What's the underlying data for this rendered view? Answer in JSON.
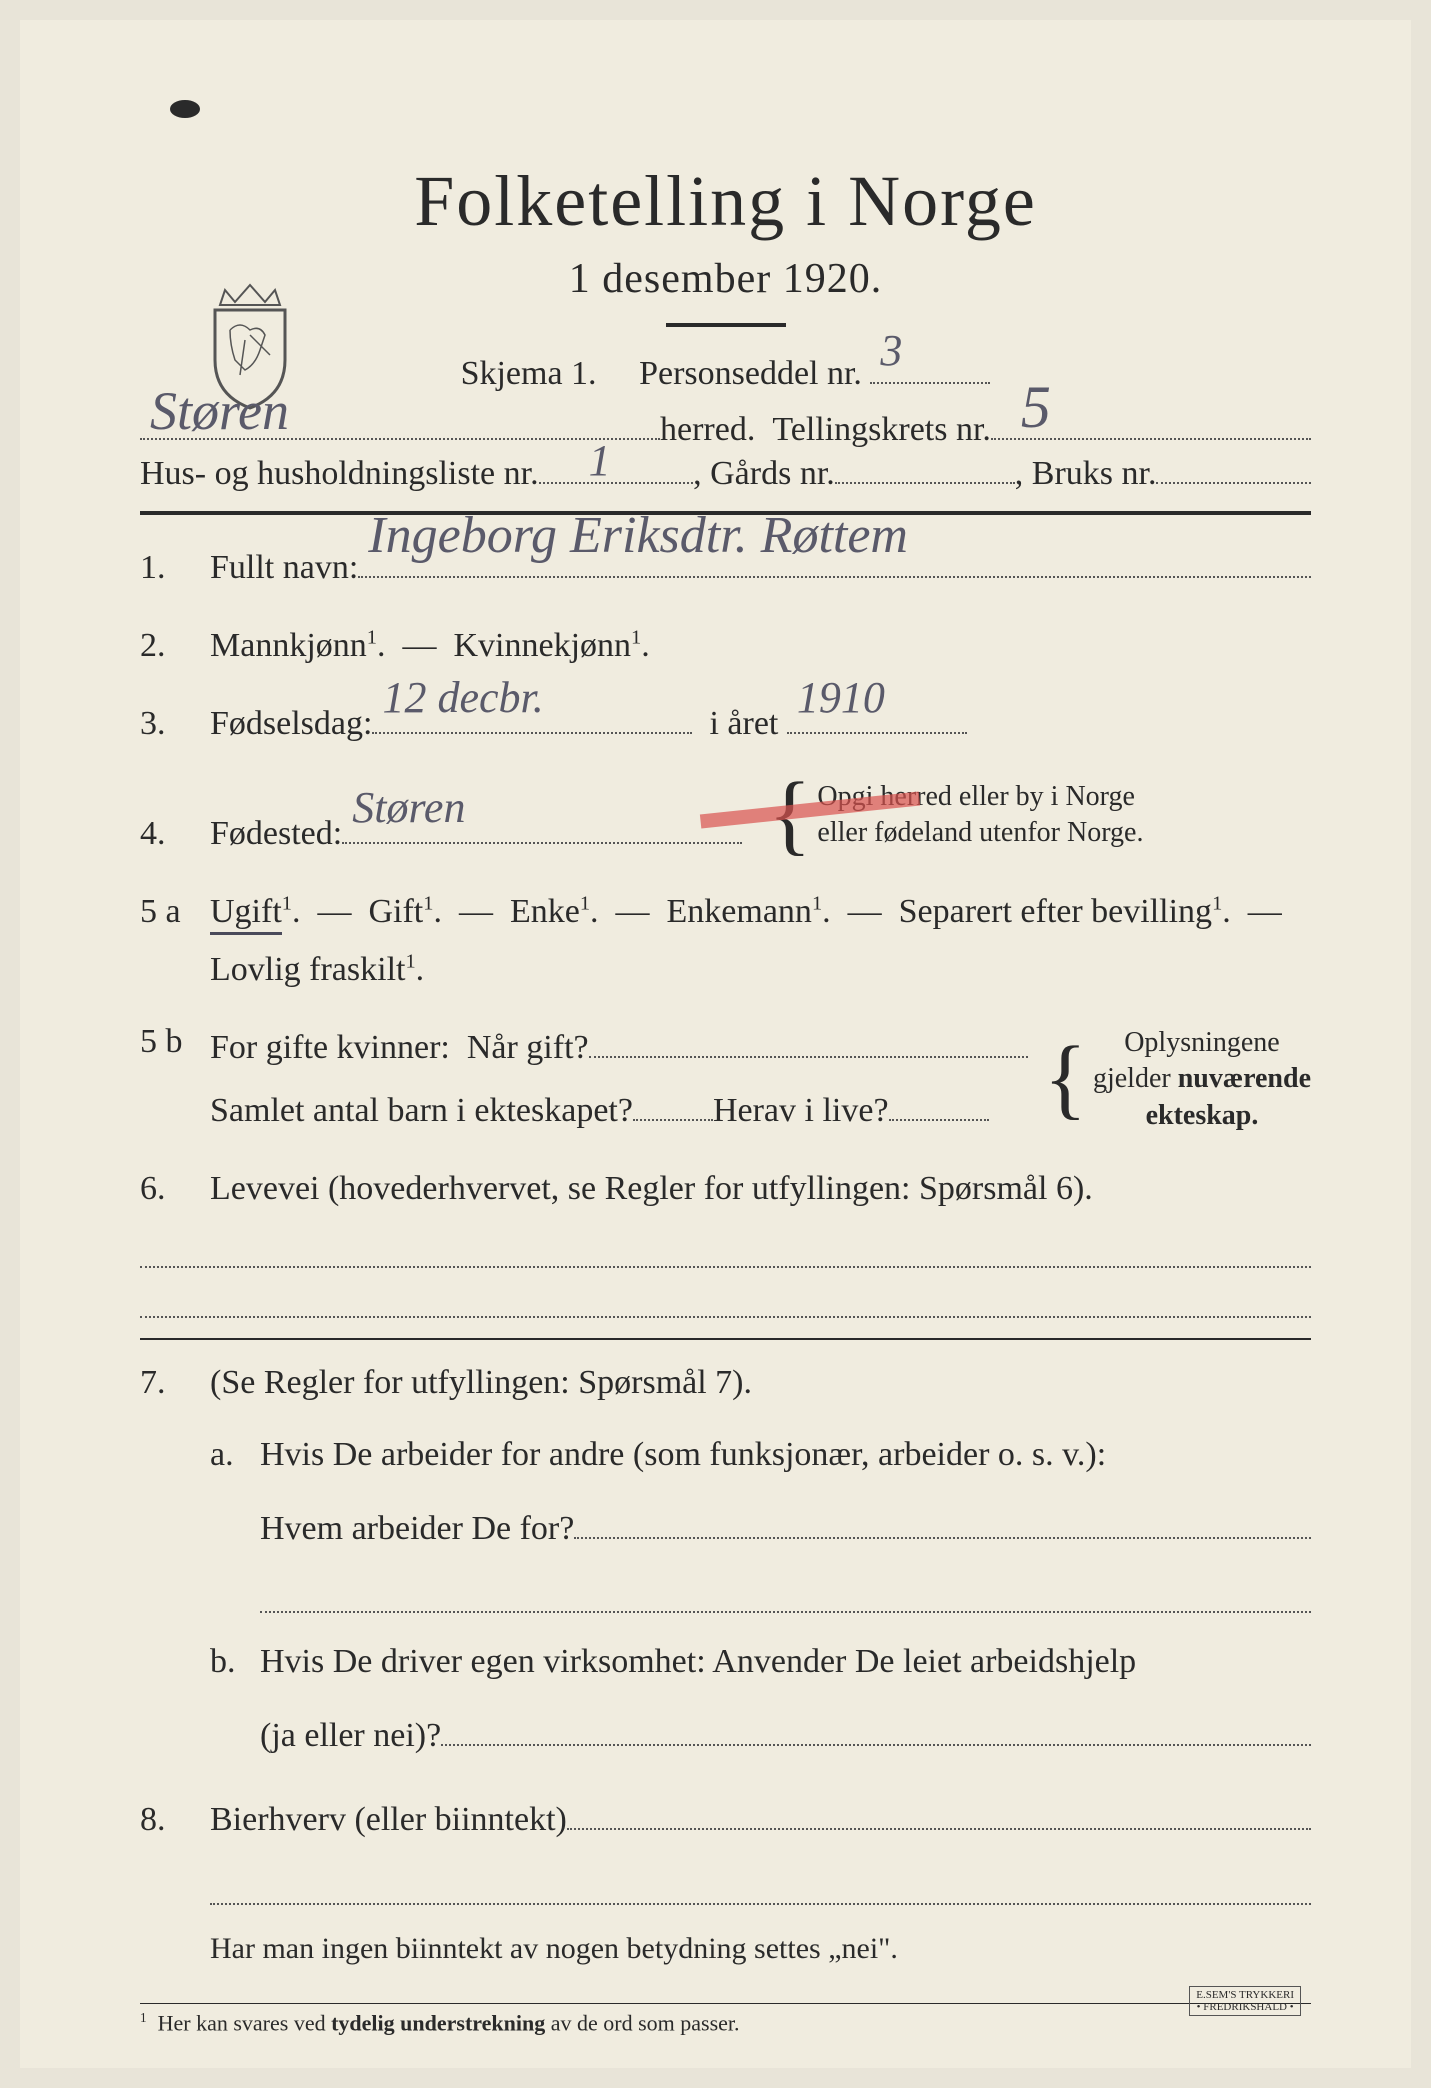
{
  "header": {
    "title": "Folketelling i Norge",
    "date": "1 desember 1920."
  },
  "schema": {
    "label": "Skjema 1.",
    "person_label": "Personseddel nr.",
    "person_nr": "3"
  },
  "herred": {
    "value": "Støren",
    "suffix": "herred.",
    "krets_label": "Tellingskrets nr.",
    "krets_nr": "5"
  },
  "husline": {
    "prefix": "Hus- og husholdningsliste nr.",
    "hus_nr": "1",
    "gards_label": ", Gårds nr.",
    "gards_nr": "",
    "bruks_label": ", Bruks nr.",
    "bruks_nr": ""
  },
  "q1": {
    "num": "1.",
    "label": "Fullt navn:",
    "value": "Ingeborg Eriksdtr. Røttem"
  },
  "q2": {
    "num": "2.",
    "text_a": "Mannkjønn",
    "text_b": "Kvinnekjønn",
    "sup": "1"
  },
  "q3": {
    "num": "3.",
    "label": "Fødselsdag:",
    "day": "12 decbr.",
    "year_label": "i året",
    "year": "1910"
  },
  "q4": {
    "num": "4.",
    "label": "Fødested:",
    "value": "Støren",
    "note_a": "Opgi herred eller by i Norge",
    "note_b": "eller fødeland utenfor Norge."
  },
  "q5a": {
    "num": "5 a",
    "opts": [
      "Ugift",
      "Gift",
      "Enke",
      "Enkemann",
      "Separert efter bevilling",
      "Lovlig fraskilt"
    ],
    "sup": "1",
    "selected_index": 0
  },
  "q5b": {
    "num": "5 b",
    "label": "For gifte kvinner:",
    "gift_label": "Når gift?",
    "barn_label": "Samlet antal barn i ekteskapet?",
    "live_label": "Herav i live?",
    "note_a": "Oplysningene",
    "note_b": "gjelder nuværende",
    "note_c": "ekteskap."
  },
  "q6": {
    "num": "6.",
    "text": "Levevei (hovederhvervet, se Regler for utfyllingen:  Spørsmål 6)."
  },
  "q7": {
    "num": "7.",
    "intro": "(Se Regler for utfyllingen:  Spørsmål 7).",
    "a_num": "a.",
    "a_text1": "Hvis De arbeider for andre (som funksjonær, arbeider o. s. v.):",
    "a_text2": "Hvem arbeider De for?",
    "b_num": "b.",
    "b_text1": "Hvis De driver egen virksomhet:  Anvender De leiet arbeidshjelp",
    "b_text2": "(ja eller nei)?"
  },
  "q8": {
    "num": "8.",
    "label": "Bierhverv (eller biinntekt)"
  },
  "footer_note": "Har man ingen biinntekt av nogen betydning settes „nei\".",
  "footnote": {
    "num": "1",
    "text_a": "Her kan svares ved ",
    "text_b": "tydelig understrekning ",
    "text_c": "av de ord som passer."
  },
  "printer": {
    "line1": "E.SEM'S TRYKKERI",
    "line2": "• FREDRIKSHALD •"
  },
  "colors": {
    "paper": "#f0ecdf",
    "ink": "#2a2a2a",
    "handwriting": "#5a5a6a",
    "red_mark": "#d9534f"
  }
}
